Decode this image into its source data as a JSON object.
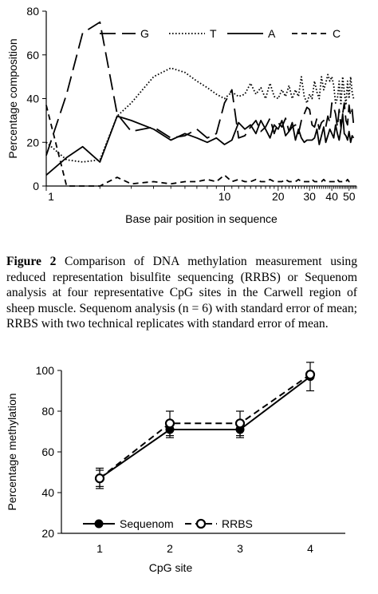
{
  "chart_data": [
    {
      "type": "line",
      "xlabel": "Base pair position in sequence",
      "ylabel": "Percentage composition",
      "xscale": "log",
      "xlim": [
        1,
        55
      ],
      "ylim": [
        0,
        80
      ],
      "yticks": [
        0,
        20,
        40,
        60,
        80
      ],
      "xticks": [
        1,
        10,
        20,
        30,
        40,
        50
      ],
      "legend_position": "top",
      "grid": false,
      "series": [
        {
          "name": "G",
          "style": "long-dash",
          "x": [
            1,
            1.3,
            1.6,
            2,
            2.5,
            3,
            4,
            5,
            6,
            7,
            8,
            9,
            10,
            11,
            12,
            13,
            14,
            15,
            16,
            17,
            18,
            19,
            20,
            21,
            22,
            23,
            24,
            25,
            26,
            27,
            28,
            29,
            30,
            31,
            32,
            33,
            34,
            35,
            36,
            37,
            38,
            39,
            40,
            41,
            42,
            43,
            44,
            45,
            46,
            47,
            48,
            49,
            50,
            51,
            52,
            53
          ],
          "values": [
            14,
            42,
            70,
            75,
            33,
            25,
            27,
            22,
            23,
            26,
            22,
            24,
            38,
            44,
            22,
            23,
            27,
            30,
            25,
            27,
            31,
            24,
            29,
            27,
            31,
            25,
            27,
            28,
            24,
            30,
            33,
            36,
            35,
            28,
            27,
            31,
            26,
            29,
            30,
            27,
            32,
            29,
            38,
            36,
            33,
            27,
            35,
            27,
            33,
            38,
            30,
            28,
            37,
            32,
            35,
            28
          ]
        },
        {
          "name": "T",
          "style": "dotted",
          "x": [
            1,
            1.3,
            1.6,
            2,
            2.5,
            3,
            4,
            5,
            6,
            7,
            8,
            9,
            10,
            11,
            12,
            13,
            14,
            15,
            16,
            17,
            18,
            19,
            20,
            21,
            22,
            23,
            24,
            25,
            26,
            27,
            28,
            29,
            30,
            31,
            32,
            33,
            34,
            35,
            36,
            37,
            38,
            39,
            40,
            41,
            42,
            43,
            44,
            45,
            46,
            47,
            48,
            49,
            50,
            51,
            52,
            53
          ],
          "values": [
            20,
            12,
            11,
            12,
            32,
            38,
            50,
            54,
            52,
            48,
            45,
            42,
            40,
            43,
            41,
            42,
            47,
            42,
            45,
            40,
            47,
            41,
            40,
            44,
            41,
            46,
            40,
            44,
            41,
            50,
            41,
            38,
            42,
            40,
            48,
            43,
            40,
            50,
            44,
            47,
            51,
            48,
            50,
            46,
            38,
            40,
            48,
            37,
            50,
            43,
            37,
            48,
            40,
            50,
            43,
            40
          ]
        },
        {
          "name": "A",
          "style": "solid",
          "x": [
            1,
            1.3,
            1.6,
            2,
            2.5,
            3,
            4,
            5,
            6,
            7,
            8,
            9,
            10,
            11,
            12,
            13,
            14,
            15,
            16,
            17,
            18,
            19,
            20,
            21,
            22,
            23,
            24,
            25,
            26,
            27,
            28,
            29,
            30,
            31,
            32,
            33,
            34,
            35,
            36,
            37,
            38,
            39,
            40,
            41,
            42,
            43,
            44,
            45,
            46,
            47,
            48,
            49,
            50,
            51,
            52,
            53
          ],
          "values": [
            5,
            13,
            18,
            11,
            32,
            30,
            26,
            21,
            24,
            22,
            20,
            22,
            19,
            21,
            29,
            26,
            28,
            24,
            30,
            26,
            22,
            28,
            26,
            30,
            23,
            25,
            29,
            21,
            26,
            22,
            20,
            21,
            21,
            21,
            22,
            26,
            19,
            23,
            27,
            20,
            23,
            26,
            24,
            22,
            28,
            24,
            21,
            26,
            33,
            24,
            23,
            21,
            25,
            20,
            23,
            22
          ]
        },
        {
          "name": "C",
          "style": "short-dash",
          "x": [
            1,
            1.3,
            1.6,
            2,
            2.5,
            3,
            4,
            5,
            6,
            7,
            8,
            9,
            10,
            11,
            12,
            13,
            14,
            15,
            16,
            17,
            18,
            19,
            20,
            21,
            22,
            23,
            24,
            25,
            26,
            27,
            28,
            29,
            30,
            31,
            32,
            33,
            34,
            35,
            36,
            37,
            38,
            39,
            40,
            41,
            42,
            43,
            44,
            45,
            46,
            47,
            48,
            49,
            50,
            51,
            52,
            53
          ],
          "values": [
            37,
            0,
            0,
            0,
            4,
            1,
            2,
            1,
            2,
            2,
            3,
            2,
            5,
            2,
            3,
            2,
            2,
            3,
            2,
            2,
            3,
            2,
            2,
            2,
            3,
            2,
            2,
            2,
            3,
            2,
            2,
            2,
            2,
            3,
            2,
            2,
            2,
            2,
            3,
            2,
            2,
            2,
            2,
            2,
            2,
            3,
            2,
            2,
            2,
            2,
            2,
            3,
            2,
            2,
            2,
            2
          ]
        }
      ]
    },
    {
      "type": "line",
      "xlabel": "CpG site",
      "ylabel": "Percentage methylation",
      "categories": [
        1,
        2,
        3,
        4
      ],
      "ylim": [
        20,
        100
      ],
      "yticks": [
        20,
        40,
        60,
        80,
        100
      ],
      "legend_position": "bottom-left",
      "grid": false,
      "series": [
        {
          "name": "Sequenom",
          "style": "solid-filled-circle",
          "values": [
            47,
            71,
            71,
            97
          ],
          "error": [
            4,
            4,
            4,
            7
          ]
        },
        {
          "name": "RRBS",
          "style": "dashed-open-circle",
          "values": [
            47,
            74,
            74,
            98
          ],
          "error": [
            5,
            6,
            6,
            1
          ]
        }
      ]
    }
  ],
  "caption": {
    "label": "Figure 2",
    "text": " Comparison of DNA methylation measurement using reduced representation bisulfite sequencing (RRBS) or Sequenom analysis at four representative CpG sites in the Carwell region of sheep muscle. Sequenom analysis (n = 6) with standard error of mean; RRBS with two technical replicates with standard error of mean."
  }
}
